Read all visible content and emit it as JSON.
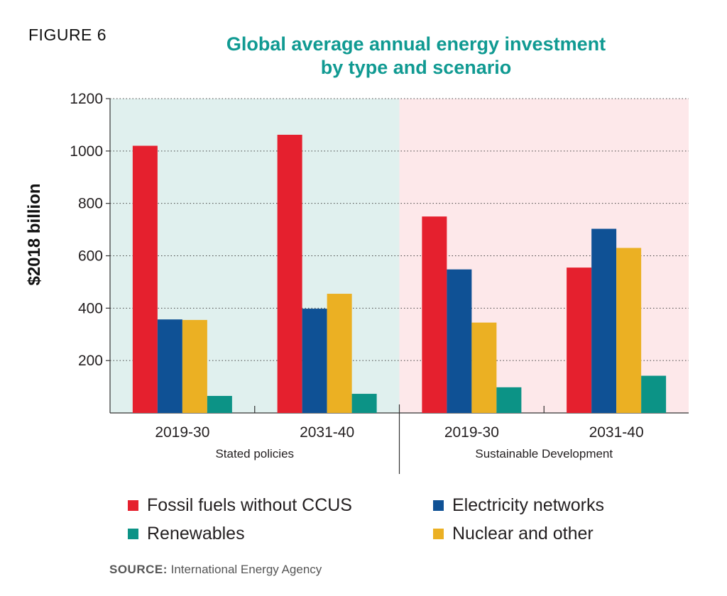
{
  "figure_label": "FIGURE 6",
  "title_line1": "Global average annual energy investment",
  "title_line2": "by type and scenario",
  "source_label": "SOURCE:",
  "source_text": " International Energy Agency",
  "chart_data": {
    "type": "bar",
    "title": "Global average annual energy investment by type and scenario",
    "ylabel": "$2018 billion",
    "ylim": [
      0,
      1200
    ],
    "yticks": [
      200,
      400,
      600,
      800,
      1000,
      1200
    ],
    "grid": true,
    "legend_position": "bottom",
    "groups": [
      {
        "name": "Stated policies",
        "background": "#e0f0ee",
        "categories": [
          "2019-30",
          "2031-40"
        ]
      },
      {
        "name": "Sustainable Development",
        "background": "#fde8ea",
        "categories": [
          "2019-30",
          "2031-40"
        ]
      }
    ],
    "categories": [
      "2019-30",
      "2031-40",
      "2019-30",
      "2031-40"
    ],
    "series": [
      {
        "name": "Fossil fuels without CCUS",
        "color": "#e5202e",
        "values": [
          1020,
          1062,
          750,
          555
        ]
      },
      {
        "name": "Electricity networks",
        "color": "#0f5195",
        "values": [
          357,
          398,
          548,
          703
        ]
      },
      {
        "name": "Nuclear and other",
        "color": "#ebb023",
        "values": [
          355,
          455,
          345,
          630
        ]
      },
      {
        "name": "Renewables",
        "color": "#0c9386",
        "values": [
          65,
          73,
          98,
          142
        ]
      }
    ],
    "legend_order": [
      "Fossil fuels without CCUS",
      "Electricity networks",
      "Renewables",
      "Nuclear and other"
    ]
  }
}
